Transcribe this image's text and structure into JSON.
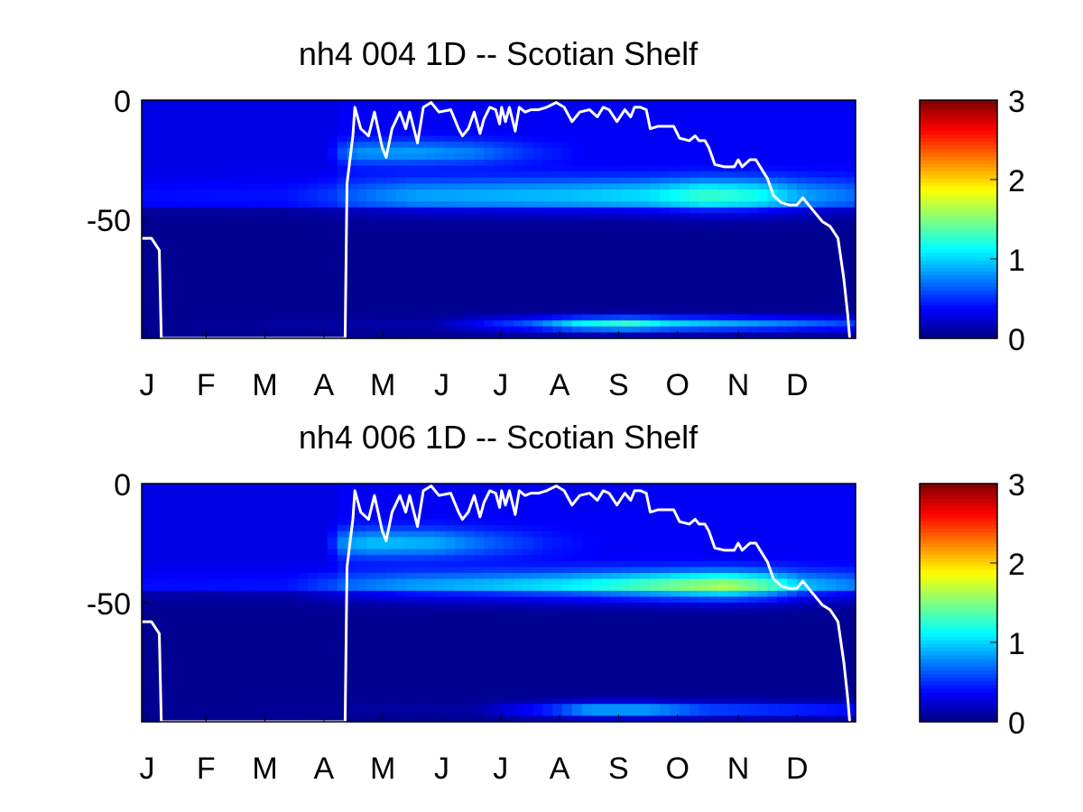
{
  "chart_data": [
    {
      "type": "heatmap",
      "title": "nh4  004 1D   -- Scotian Shelf",
      "x_ticks": [
        "J",
        "F",
        "M",
        "A",
        "M",
        "J",
        "J",
        "A",
        "S",
        "O",
        "N",
        "D"
      ],
      "xlim": [
        1,
        366
      ],
      "y_ticks": [
        "0",
        "-50"
      ],
      "y_tick_values": [
        0,
        -50
      ],
      "ylim": [
        -100,
        0
      ],
      "colorbar": {
        "ticks": [
          "0",
          "1",
          "2",
          "3"
        ],
        "range": [
          0,
          3
        ],
        "colormap": "jet"
      },
      "surface_value": 0.3,
      "deep_value": 0.05,
      "bands": [
        {
          "depth": -40,
          "width": 7,
          "points": [
            [
              0,
              0.1
            ],
            [
              75,
              0.12
            ],
            [
              100,
              0.25
            ],
            [
              140,
              0.5
            ],
            [
              180,
              0.55
            ],
            [
              220,
              0.6
            ],
            [
              260,
              0.7
            ],
            [
              290,
              0.95
            ],
            [
              315,
              0.85
            ],
            [
              340,
              0.5
            ],
            [
              366,
              0.35
            ]
          ]
        },
        {
          "depth": -22,
          "width": 5,
          "points": [
            [
              0,
              0
            ],
            [
              95,
              0
            ],
            [
              110,
              0.45
            ],
            [
              140,
              0.5
            ],
            [
              170,
              0.4
            ],
            [
              200,
              0.15
            ],
            [
              230,
              0
            ],
            [
              366,
              0
            ]
          ]
        },
        {
          "depth": -94,
          "width": 3,
          "points": [
            [
              0,
              0
            ],
            [
              150,
              0.08
            ],
            [
              200,
              0.6
            ],
            [
              225,
              1.05
            ],
            [
              250,
              1.25
            ],
            [
              270,
              1.0
            ],
            [
              300,
              0.85
            ],
            [
              330,
              0.7
            ],
            [
              366,
              0.5
            ]
          ]
        }
      ],
      "mld_line": [
        [
          1,
          -58
        ],
        [
          6,
          -58
        ],
        [
          10,
          -63
        ],
        [
          11,
          -100
        ],
        [
          105,
          -100
        ],
        [
          106,
          -35
        ],
        [
          109,
          -15
        ],
        [
          110,
          -3
        ],
        [
          113,
          -12
        ],
        [
          117,
          -15
        ],
        [
          120,
          -5
        ],
        [
          124,
          -20
        ],
        [
          126,
          -24
        ],
        [
          129,
          -12
        ],
        [
          133,
          -5
        ],
        [
          136,
          -12
        ],
        [
          138,
          -5
        ],
        [
          142,
          -18
        ],
        [
          145,
          -3
        ],
        [
          149,
          -1
        ],
        [
          153,
          -5
        ],
        [
          159,
          -4
        ],
        [
          163,
          -12
        ],
        [
          165,
          -15
        ],
        [
          168,
          -12
        ],
        [
          171,
          -5
        ],
        [
          174,
          -14
        ],
        [
          176,
          -8
        ],
        [
          179,
          -3
        ],
        [
          182,
          -4
        ],
        [
          184,
          -10
        ],
        [
          185,
          -3
        ],
        [
          187,
          -9
        ],
        [
          189,
          -3
        ],
        [
          192,
          -13
        ],
        [
          194,
          -3
        ],
        [
          197,
          -5
        ],
        [
          200,
          -4
        ],
        [
          204,
          -4
        ],
        [
          208,
          -3
        ],
        [
          213,
          -1
        ],
        [
          217,
          -3
        ],
        [
          221,
          -9
        ],
        [
          225,
          -5
        ],
        [
          230,
          -4
        ],
        [
          234,
          -7
        ],
        [
          237,
          -3
        ],
        [
          240,
          -4
        ],
        [
          244,
          -9
        ],
        [
          248,
          -4
        ],
        [
          251,
          -7
        ],
        [
          253,
          -3
        ],
        [
          256,
          -3
        ],
        [
          259,
          -4
        ],
        [
          261,
          -12
        ],
        [
          265,
          -11
        ],
        [
          270,
          -11
        ],
        [
          273,
          -11
        ],
        [
          276,
          -16
        ],
        [
          281,
          -17
        ],
        [
          284,
          -15
        ],
        [
          286,
          -17
        ],
        [
          289,
          -17
        ],
        [
          291,
          -20
        ],
        [
          294,
          -27
        ],
        [
          299,
          -28
        ],
        [
          304,
          -28
        ],
        [
          306,
          -25
        ],
        [
          308,
          -28
        ],
        [
          312,
          -25
        ],
        [
          315,
          -25
        ],
        [
          318,
          -29
        ],
        [
          321,
          -33
        ],
        [
          324,
          -40
        ],
        [
          328,
          -43
        ],
        [
          332,
          -44
        ],
        [
          336,
          -44
        ],
        [
          339,
          -41
        ],
        [
          342,
          -44
        ],
        [
          345,
          -47
        ],
        [
          349,
          -51
        ],
        [
          353,
          -53
        ],
        [
          357,
          -58
        ],
        [
          360,
          -75
        ],
        [
          362,
          -90
        ],
        [
          363,
          -100
        ]
      ]
    },
    {
      "type": "heatmap",
      "title": "nh4  006 1D   -- Scotian Shelf",
      "x_ticks": [
        "J",
        "F",
        "M",
        "A",
        "M",
        "J",
        "J",
        "A",
        "S",
        "O",
        "N",
        "D"
      ],
      "xlim": [
        1,
        366
      ],
      "y_ticks": [
        "0",
        "-50"
      ],
      "y_tick_values": [
        0,
        -50
      ],
      "ylim": [
        -100,
        0
      ],
      "colorbar": {
        "ticks": [
          "0",
          "1",
          "2",
          "3"
        ],
        "range": [
          0,
          3
        ],
        "colormap": "jet"
      },
      "surface_value": 0.3,
      "deep_value": 0.05,
      "bands": [
        {
          "depth": -43,
          "width": 6,
          "points": [
            [
              0,
              0.1
            ],
            [
              75,
              0.12
            ],
            [
              100,
              0.3
            ],
            [
              140,
              0.5
            ],
            [
              180,
              0.6
            ],
            [
              220,
              0.75
            ],
            [
              250,
              0.95
            ],
            [
              275,
              1.15
            ],
            [
              300,
              1.3
            ],
            [
              320,
              1.05
            ],
            [
              340,
              0.6
            ],
            [
              366,
              0.4
            ]
          ]
        },
        {
          "depth": -25,
          "width": 6,
          "points": [
            [
              0,
              0
            ],
            [
              95,
              0
            ],
            [
              105,
              0.5
            ],
            [
              120,
              0.6
            ],
            [
              150,
              0.55
            ],
            [
              180,
              0.3
            ],
            [
              210,
              0.1
            ],
            [
              240,
              0
            ],
            [
              366,
              0
            ]
          ]
        },
        {
          "depth": -95,
          "width": 3,
          "points": [
            [
              0,
              0
            ],
            [
              170,
              0.05
            ],
            [
              210,
              0.5
            ],
            [
              230,
              0.9
            ],
            [
              260,
              0.9
            ],
            [
              290,
              0.6
            ],
            [
              330,
              0.5
            ],
            [
              366,
              0.4
            ]
          ]
        }
      ],
      "mld_line": [
        [
          1,
          -58
        ],
        [
          6,
          -58
        ],
        [
          10,
          -63
        ],
        [
          11,
          -100
        ],
        [
          105,
          -100
        ],
        [
          106,
          -35
        ],
        [
          109,
          -15
        ],
        [
          110,
          -3
        ],
        [
          113,
          -12
        ],
        [
          117,
          -15
        ],
        [
          120,
          -5
        ],
        [
          124,
          -20
        ],
        [
          126,
          -24
        ],
        [
          129,
          -12
        ],
        [
          133,
          -5
        ],
        [
          136,
          -12
        ],
        [
          138,
          -5
        ],
        [
          142,
          -18
        ],
        [
          145,
          -3
        ],
        [
          149,
          -1
        ],
        [
          153,
          -5
        ],
        [
          159,
          -4
        ],
        [
          163,
          -12
        ],
        [
          165,
          -15
        ],
        [
          168,
          -12
        ],
        [
          171,
          -5
        ],
        [
          174,
          -14
        ],
        [
          176,
          -8
        ],
        [
          179,
          -3
        ],
        [
          182,
          -4
        ],
        [
          184,
          -10
        ],
        [
          185,
          -3
        ],
        [
          187,
          -9
        ],
        [
          189,
          -3
        ],
        [
          192,
          -13
        ],
        [
          194,
          -3
        ],
        [
          197,
          -5
        ],
        [
          200,
          -4
        ],
        [
          204,
          -4
        ],
        [
          208,
          -3
        ],
        [
          213,
          -1
        ],
        [
          217,
          -3
        ],
        [
          221,
          -9
        ],
        [
          225,
          -5
        ],
        [
          230,
          -4
        ],
        [
          234,
          -7
        ],
        [
          237,
          -3
        ],
        [
          240,
          -4
        ],
        [
          244,
          -9
        ],
        [
          248,
          -4
        ],
        [
          251,
          -7
        ],
        [
          253,
          -3
        ],
        [
          256,
          -3
        ],
        [
          259,
          -4
        ],
        [
          261,
          -12
        ],
        [
          265,
          -11
        ],
        [
          270,
          -11
        ],
        [
          273,
          -11
        ],
        [
          276,
          -16
        ],
        [
          281,
          -17
        ],
        [
          284,
          -15
        ],
        [
          286,
          -17
        ],
        [
          289,
          -17
        ],
        [
          291,
          -20
        ],
        [
          294,
          -27
        ],
        [
          299,
          -28
        ],
        [
          304,
          -28
        ],
        [
          306,
          -25
        ],
        [
          308,
          -28
        ],
        [
          312,
          -25
        ],
        [
          315,
          -25
        ],
        [
          318,
          -29
        ],
        [
          321,
          -33
        ],
        [
          324,
          -40
        ],
        [
          328,
          -43
        ],
        [
          332,
          -44
        ],
        [
          336,
          -44
        ],
        [
          339,
          -41
        ],
        [
          342,
          -44
        ],
        [
          345,
          -47
        ],
        [
          349,
          -51
        ],
        [
          353,
          -53
        ],
        [
          357,
          -58
        ],
        [
          360,
          -75
        ],
        [
          362,
          -90
        ],
        [
          363,
          -100
        ]
      ]
    }
  ]
}
